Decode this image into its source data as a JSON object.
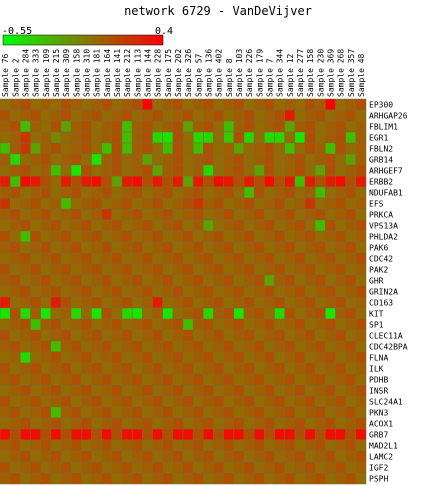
{
  "chart_data": {
    "type": "heatmap",
    "title": "network 6729 - VanDeVijver",
    "color_scale": {
      "min": -0.55,
      "max": 0.4,
      "min_label": "-0.55",
      "max_label": "0.4",
      "low_color": "#00ff00",
      "mid_color": "#7f7f00",
      "high_color": "#ff0000"
    },
    "columns": [
      "Sample 76",
      "Sample 2",
      "Sample 284",
      "Sample 333",
      "Sample 109",
      "Sample 215",
      "Sample 309",
      "Sample 158",
      "Sample 310",
      "Sample 181",
      "Sample 164",
      "Sample 141",
      "Sample 212",
      "Sample 113",
      "Sample 144",
      "Sample 228",
      "Sample 175",
      "Sample 202",
      "Sample 326",
      "Sample 57",
      "Sample 136",
      "Sample 402",
      "Sample 8",
      "Sample 103",
      "Sample 226",
      "Sample 179",
      "Sample 7",
      "Sample 344",
      "Sample 12",
      "Sample 277",
      "Sample 158",
      "Sample 230",
      "Sample 369",
      "Sample 268",
      "Sample 357",
      "Sample 48"
    ],
    "rows": [
      "EP300",
      "ARHGAP26",
      "FBLIM1",
      "EGR1",
      "FBLN2",
      "GRB14",
      "ARHGEF7",
      "ERBB2",
      "NDUFAB1",
      "EFS",
      "PRKCA",
      "VPS13A",
      "PHLDA2",
      "PAK6",
      "CDC42",
      "PAK2",
      "GHR",
      "GRIN2A",
      "CD163",
      "KIT",
      "SP1",
      "CLEC11A",
      "CDC42BPA",
      "FLNA",
      "ILK",
      "PDHB",
      "INSR",
      "SLC24A1",
      "PKN3",
      "ACOX1",
      "GRB7",
      "MAD2L1",
      "LAMC2",
      "IGF2",
      "PSPH"
    ],
    "values": [
      [
        0.0,
        0.05,
        0.1,
        0.0,
        0.05,
        0.0,
        0.1,
        0.05,
        0.0,
        0.05,
        0.1,
        0.0,
        0.05,
        0.1,
        0.4,
        0.0,
        0.05,
        0.1,
        0.0,
        0.05,
        0.1,
        0.0,
        0.05,
        0.1,
        0.0,
        0.05,
        0.1,
        0.0,
        0.05,
        0.0,
        0.1,
        0.05,
        0.4,
        0.0,
        0.05,
        0.1
      ],
      [
        0.1,
        0.0,
        0.05,
        0.1,
        0.0,
        0.05,
        0.1,
        0.0,
        0.05,
        0.1,
        0.0,
        0.05,
        0.1,
        0.0,
        0.05,
        0.1,
        0.0,
        0.05,
        0.1,
        0.0,
        0.05,
        0.1,
        0.0,
        0.05,
        0.1,
        0.0,
        0.05,
        0.1,
        0.3,
        0.0,
        0.05,
        0.1,
        0.0,
        0.05,
        0.1,
        0.0
      ],
      [
        0.05,
        0.1,
        -0.3,
        0.05,
        0.0,
        0.1,
        -0.2,
        0.05,
        0.1,
        0.0,
        0.05,
        0.1,
        -0.3,
        0.05,
        0.1,
        0.0,
        0.05,
        0.1,
        -0.2,
        0.05,
        0.1,
        0.0,
        -0.3,
        0.05,
        0.1,
        0.0,
        0.05,
        0.1,
        -0.2,
        0.05,
        0.1,
        0.0,
        0.05,
        0.1,
        0.0,
        0.05
      ],
      [
        0.0,
        0.05,
        0.2,
        0.0,
        0.05,
        -0.1,
        0.0,
        0.05,
        0.1,
        0.0,
        0.05,
        0.1,
        -0.3,
        0.05,
        0.1,
        -0.4,
        -0.45,
        0.1,
        0.0,
        -0.4,
        -0.4,
        0.0,
        -0.35,
        0.1,
        -0.4,
        0.0,
        -0.4,
        -0.4,
        0.0,
        -0.45,
        0.1,
        0.0,
        0.05,
        0.1,
        -0.3,
        0.05
      ],
      [
        -0.3,
        0.05,
        0.2,
        -0.2,
        0.05,
        0.1,
        0.0,
        0.05,
        0.1,
        0.0,
        -0.3,
        0.1,
        -0.3,
        0.05,
        0.1,
        0.0,
        -0.3,
        0.1,
        0.0,
        -0.3,
        0.1,
        0.0,
        0.05,
        -0.2,
        0.0,
        0.05,
        0.1,
        0.0,
        -0.3,
        0.0,
        0.1,
        0.05,
        -0.3,
        0.1,
        0.0,
        0.05
      ],
      [
        0.05,
        -0.4,
        0.0,
        0.05,
        0.1,
        0.0,
        0.05,
        0.1,
        0.0,
        -0.45,
        0.05,
        0.1,
        0.0,
        0.05,
        -0.2,
        0.0,
        0.05,
        0.1,
        0.0,
        0.05,
        0.1,
        0.0,
        0.05,
        0.1,
        0.0,
        0.05,
        0.1,
        0.0,
        0.05,
        0.1,
        0.0,
        0.05,
        0.1,
        0.0,
        -0.2,
        0.05
      ],
      [
        0.0,
        0.05,
        0.1,
        0.0,
        0.05,
        -0.3,
        0.0,
        -0.45,
        0.1,
        0.0,
        0.05,
        0.1,
        0.0,
        0.05,
        0.1,
        -0.2,
        0.05,
        0.1,
        0.0,
        0.05,
        -0.4,
        0.0,
        0.05,
        0.1,
        0.0,
        -0.2,
        0.1,
        0.0,
        0.05,
        0.1,
        0.0,
        -0.2,
        0.1,
        0.0,
        0.05,
        0.1
      ],
      [
        0.3,
        -0.3,
        0.35,
        0.3,
        0.1,
        0.0,
        0.3,
        0.1,
        0.3,
        0.35,
        0.1,
        -0.2,
        0.3,
        0.35,
        0.1,
        0.3,
        0.1,
        0.3,
        -0.2,
        0.3,
        0.1,
        0.35,
        0.3,
        0.1,
        0.3,
        0.1,
        0.35,
        0.1,
        0.3,
        -0.3,
        0.3,
        0.1,
        0.3,
        0.35,
        0.1,
        0.3
      ],
      [
        0.05,
        0.1,
        0.0,
        0.05,
        0.1,
        0.0,
        0.05,
        0.1,
        0.0,
        0.05,
        0.1,
        0.0,
        0.05,
        0.1,
        0.0,
        0.05,
        0.1,
        0.0,
        0.05,
        0.1,
        0.0,
        0.05,
        0.1,
        0.0,
        -0.3,
        0.1,
        0.0,
        0.05,
        0.1,
        0.0,
        0.05,
        -0.3,
        0.0,
        0.05,
        0.1,
        0.0
      ],
      [
        0.2,
        0.0,
        0.05,
        0.1,
        0.0,
        0.05,
        -0.3,
        0.0,
        0.05,
        0.1,
        0.0,
        0.05,
        0.1,
        0.0,
        0.05,
        0.1,
        0.0,
        0.05,
        0.1,
        0.2,
        0.05,
        0.1,
        0.0,
        0.05,
        0.1,
        0.0,
        0.05,
        0.1,
        0.0,
        0.05,
        0.2,
        0.0,
        0.05,
        0.1,
        0.0,
        0.05
      ],
      [
        0.05,
        0.1,
        0.0,
        0.05,
        0.1,
        0.0,
        0.05,
        0.1,
        0.0,
        0.05,
        0.2,
        0.0,
        0.05,
        0.1,
        0.0,
        0.05,
        0.1,
        0.0,
        0.05,
        0.1,
        0.0,
        0.05,
        0.1,
        0.0,
        0.05,
        0.1,
        0.0,
        0.05,
        0.1,
        0.0,
        0.05,
        0.1,
        0.0,
        0.05,
        0.1,
        0.0
      ],
      [
        0.0,
        0.05,
        0.1,
        0.0,
        0.05,
        0.1,
        0.0,
        0.05,
        0.1,
        0.0,
        0.05,
        0.1,
        0.0,
        0.05,
        0.1,
        0.0,
        0.05,
        0.1,
        0.0,
        0.05,
        -0.2,
        0.0,
        0.05,
        0.1,
        0.0,
        0.05,
        0.1,
        0.0,
        0.05,
        0.1,
        0.0,
        -0.3,
        0.1,
        0.0,
        0.05,
        0.1
      ],
      [
        0.1,
        0.0,
        -0.3,
        0.1,
        0.0,
        0.05,
        0.1,
        0.0,
        0.05,
        0.1,
        0.0,
        0.05,
        0.1,
        0.0,
        0.05,
        0.1,
        0.0,
        0.05,
        0.1,
        0.0,
        0.05,
        0.1,
        0.0,
        0.05,
        0.1,
        0.0,
        0.05,
        0.1,
        0.0,
        0.05,
        0.1,
        0.0,
        0.05,
        0.1,
        0.0,
        0.05
      ],
      [
        0.05,
        0.1,
        0.0,
        0.05,
        0.1,
        0.0,
        0.05,
        0.1,
        0.0,
        0.05,
        0.1,
        0.0,
        0.05,
        0.1,
        0.0,
        0.05,
        0.1,
        0.0,
        0.05,
        0.1,
        0.0,
        0.05,
        0.1,
        0.0,
        0.05,
        0.1,
        0.0,
        0.05,
        0.1,
        0.0,
        0.05,
        0.1,
        0.0,
        0.05,
        0.1,
        0.0
      ],
      [
        0.0,
        0.05,
        0.1,
        0.0,
        0.05,
        0.1,
        0.0,
        0.05,
        0.1,
        0.0,
        0.05,
        0.1,
        0.0,
        0.05,
        0.1,
        0.0,
        0.05,
        0.1,
        0.0,
        0.05,
        0.1,
        0.0,
        0.05,
        0.1,
        0.0,
        0.05,
        0.1,
        0.0,
        0.05,
        0.1,
        0.0,
        0.05,
        0.1,
        0.0,
        0.05,
        0.1
      ],
      [
        0.1,
        0.0,
        0.05,
        0.1,
        0.0,
        0.05,
        0.1,
        0.0,
        0.05,
        0.1,
        0.0,
        0.05,
        0.1,
        0.0,
        0.05,
        0.1,
        0.0,
        0.05,
        0.1,
        0.0,
        0.05,
        0.1,
        0.0,
        0.05,
        0.1,
        0.0,
        0.05,
        0.1,
        0.0,
        0.05,
        0.1,
        0.0,
        0.05,
        0.1,
        0.0,
        0.05
      ],
      [
        0.05,
        0.1,
        0.0,
        0.05,
        0.1,
        0.0,
        0.05,
        0.1,
        0.0,
        0.05,
        0.1,
        0.0,
        0.05,
        0.1,
        0.0,
        0.05,
        0.1,
        0.0,
        0.05,
        0.1,
        0.0,
        0.05,
        0.1,
        0.0,
        0.05,
        0.1,
        -0.2,
        0.05,
        0.1,
        0.0,
        0.05,
        0.1,
        0.0,
        0.05,
        0.1,
        0.0
      ],
      [
        0.0,
        0.05,
        0.1,
        0.0,
        0.05,
        0.1,
        0.0,
        0.05,
        0.1,
        0.0,
        0.05,
        0.1,
        0.0,
        0.05,
        0.1,
        0.0,
        0.05,
        0.1,
        0.0,
        0.05,
        0.1,
        0.0,
        0.05,
        0.1,
        0.0,
        0.05,
        0.1,
        0.0,
        0.05,
        0.1,
        0.0,
        0.05,
        0.1,
        0.0,
        0.05,
        0.1
      ],
      [
        0.3,
        0.0,
        0.05,
        0.1,
        0.0,
        0.3,
        0.1,
        0.0,
        0.05,
        0.1,
        0.0,
        0.05,
        0.1,
        0.0,
        0.05,
        0.3,
        0.0,
        0.05,
        0.1,
        0.0,
        0.05,
        0.1,
        0.0,
        0.05,
        0.1,
        0.0,
        0.05,
        0.1,
        0.0,
        0.05,
        0.1,
        0.0,
        0.05,
        0.1,
        0.0,
        0.05
      ],
      [
        -0.45,
        0.1,
        -0.4,
        0.05,
        -0.45,
        0.0,
        0.05,
        -0.4,
        0.0,
        -0.45,
        0.1,
        0.0,
        -0.4,
        -0.45,
        0.0,
        0.05,
        -0.45,
        0.0,
        0.05,
        0.1,
        -0.4,
        0.05,
        0.1,
        -0.45,
        0.05,
        0.1,
        0.0,
        -0.4,
        0.1,
        0.0,
        0.05,
        0.1,
        -0.45,
        0.05,
        0.1,
        0.0
      ],
      [
        0.0,
        0.05,
        0.1,
        -0.3,
        0.05,
        0.1,
        0.0,
        0.05,
        0.1,
        0.0,
        0.05,
        0.1,
        0.0,
        0.05,
        0.1,
        0.0,
        0.05,
        0.1,
        -0.3,
        0.05,
        0.1,
        0.0,
        0.05,
        0.1,
        0.0,
        0.05,
        0.1,
        0.0,
        0.05,
        0.1,
        0.0,
        0.05,
        0.1,
        0.0,
        0.05,
        0.1
      ],
      [
        0.1,
        0.0,
        0.05,
        0.1,
        0.0,
        0.05,
        0.1,
        0.0,
        0.05,
        0.1,
        0.0,
        0.05,
        0.1,
        0.0,
        0.05,
        0.1,
        0.0,
        0.05,
        0.1,
        0.0,
        0.05,
        0.1,
        0.0,
        0.05,
        0.1,
        0.0,
        0.05,
        0.1,
        0.0,
        0.05,
        0.1,
        0.0,
        0.05,
        0.1,
        0.0,
        0.05
      ],
      [
        0.05,
        0.1,
        0.0,
        0.05,
        0.1,
        -0.3,
        0.05,
        0.1,
        0.0,
        0.05,
        0.1,
        0.0,
        0.05,
        0.1,
        0.0,
        0.05,
        0.1,
        0.0,
        0.05,
        0.1,
        0.0,
        0.05,
        0.1,
        0.0,
        0.05,
        0.1,
        0.0,
        0.05,
        0.1,
        0.0,
        0.05,
        0.1,
        0.0,
        0.05,
        0.1,
        0.0
      ],
      [
        0.0,
        0.05,
        -0.4,
        0.0,
        0.05,
        0.1,
        0.0,
        0.05,
        0.1,
        0.0,
        0.05,
        0.1,
        0.0,
        0.05,
        0.1,
        0.0,
        0.05,
        0.1,
        0.0,
        0.05,
        0.1,
        0.0,
        0.05,
        0.1,
        0.0,
        0.05,
        0.1,
        0.0,
        0.05,
        0.1,
        0.0,
        0.05,
        0.1,
        0.0,
        0.05,
        0.1
      ],
      [
        0.1,
        0.0,
        0.05,
        0.1,
        0.0,
        0.05,
        0.1,
        0.0,
        0.05,
        0.1,
        0.0,
        0.05,
        0.1,
        0.0,
        0.05,
        0.1,
        0.0,
        0.05,
        0.1,
        0.0,
        0.05,
        0.1,
        0.0,
        0.05,
        0.1,
        0.0,
        0.05,
        0.1,
        0.0,
        0.05,
        0.1,
        0.0,
        0.05,
        0.1,
        0.0,
        0.05
      ],
      [
        0.05,
        0.1,
        0.0,
        0.05,
        0.1,
        0.0,
        0.05,
        0.1,
        0.0,
        0.05,
        0.1,
        0.0,
        0.05,
        0.1,
        0.0,
        0.05,
        0.1,
        0.0,
        0.05,
        0.1,
        0.0,
        0.05,
        0.1,
        0.0,
        0.05,
        0.1,
        0.0,
        0.05,
        0.1,
        0.0,
        0.05,
        0.1,
        0.0,
        0.05,
        0.1,
        0.0
      ],
      [
        0.0,
        0.05,
        0.1,
        0.0,
        0.05,
        0.1,
        0.0,
        0.05,
        0.1,
        0.0,
        0.05,
        0.1,
        0.0,
        0.05,
        0.1,
        0.0,
        0.05,
        0.1,
        0.0,
        0.05,
        0.1,
        0.0,
        0.05,
        0.1,
        0.0,
        0.05,
        0.1,
        0.0,
        0.05,
        0.1,
        0.0,
        0.05,
        0.1,
        0.0,
        0.05,
        0.1
      ],
      [
        0.1,
        0.0,
        0.05,
        0.1,
        0.0,
        0.05,
        0.1,
        0.0,
        0.05,
        0.1,
        0.0,
        0.05,
        0.1,
        0.0,
        0.05,
        0.1,
        0.0,
        0.05,
        0.1,
        0.0,
        0.05,
        0.1,
        0.0,
        0.05,
        0.1,
        0.0,
        0.05,
        0.1,
        0.0,
        0.05,
        0.1,
        0.0,
        0.05,
        0.1,
        0.0,
        0.05
      ],
      [
        0.05,
        0.1,
        0.0,
        0.05,
        0.1,
        -0.3,
        0.05,
        0.1,
        0.0,
        0.05,
        0.1,
        0.0,
        0.05,
        0.1,
        0.0,
        0.05,
        0.1,
        0.0,
        0.05,
        0.1,
        0.0,
        0.05,
        0.1,
        0.0,
        0.05,
        0.1,
        0.0,
        0.05,
        0.1,
        0.0,
        0.05,
        0.1,
        0.0,
        0.05,
        0.1,
        0.0
      ],
      [
        0.0,
        0.05,
        0.1,
        0.0,
        0.05,
        0.1,
        0.0,
        0.05,
        0.1,
        0.0,
        0.05,
        0.1,
        0.0,
        0.05,
        0.1,
        0.0,
        0.05,
        0.1,
        0.0,
        0.05,
        0.1,
        0.0,
        0.05,
        0.1,
        0.0,
        0.05,
        0.1,
        0.0,
        0.05,
        0.1,
        0.0,
        0.05,
        0.1,
        0.0,
        0.05,
        0.1
      ],
      [
        0.35,
        0.1,
        0.35,
        0.35,
        0.1,
        0.35,
        0.1,
        0.35,
        0.35,
        0.1,
        0.35,
        0.1,
        0.35,
        0.35,
        0.1,
        0.35,
        0.1,
        0.35,
        0.35,
        0.1,
        0.35,
        0.1,
        0.35,
        0.35,
        0.1,
        0.35,
        0.1,
        0.35,
        0.35,
        0.1,
        0.35,
        0.1,
        0.35,
        0.35,
        0.1,
        0.35
      ],
      [
        0.05,
        0.1,
        0.0,
        0.05,
        0.1,
        0.0,
        0.05,
        0.1,
        0.0,
        0.05,
        0.1,
        0.0,
        0.05,
        0.1,
        0.0,
        0.05,
        0.1,
        0.0,
        0.05,
        0.1,
        0.0,
        0.05,
        0.1,
        0.0,
        0.05,
        0.1,
        0.0,
        0.05,
        0.1,
        0.0,
        0.05,
        0.1,
        0.0,
        0.05,
        0.1,
        0.0
      ],
      [
        0.0,
        0.05,
        0.1,
        0.0,
        0.05,
        0.1,
        0.0,
        0.05,
        0.1,
        0.0,
        0.05,
        0.1,
        0.0,
        0.05,
        0.1,
        0.0,
        0.05,
        0.1,
        0.0,
        0.05,
        0.1,
        0.0,
        0.05,
        0.1,
        0.0,
        0.05,
        0.1,
        0.0,
        0.05,
        0.1,
        0.0,
        0.05,
        0.1,
        0.0,
        0.05,
        0.1
      ],
      [
        0.1,
        0.0,
        0.05,
        0.1,
        0.0,
        0.05,
        0.1,
        0.0,
        0.05,
        0.1,
        0.0,
        0.05,
        0.1,
        0.0,
        0.05,
        0.1,
        0.0,
        0.05,
        0.1,
        0.0,
        0.05,
        0.1,
        0.0,
        0.05,
        0.1,
        0.0,
        0.05,
        0.1,
        0.0,
        0.05,
        0.1,
        0.0,
        0.05,
        0.1,
        0.0,
        0.05
      ],
      [
        0.05,
        0.1,
        0.0,
        0.05,
        0.1,
        0.0,
        0.05,
        0.1,
        0.0,
        0.05,
        0.1,
        0.0,
        0.05,
        0.1,
        0.0,
        0.05,
        0.1,
        0.0,
        0.05,
        0.1,
        0.0,
        0.05,
        0.1,
        0.0,
        0.05,
        0.1,
        0.0,
        0.05,
        0.1,
        0.0,
        0.05,
        0.1,
        0.0,
        0.05,
        0.1,
        0.0
      ]
    ]
  }
}
